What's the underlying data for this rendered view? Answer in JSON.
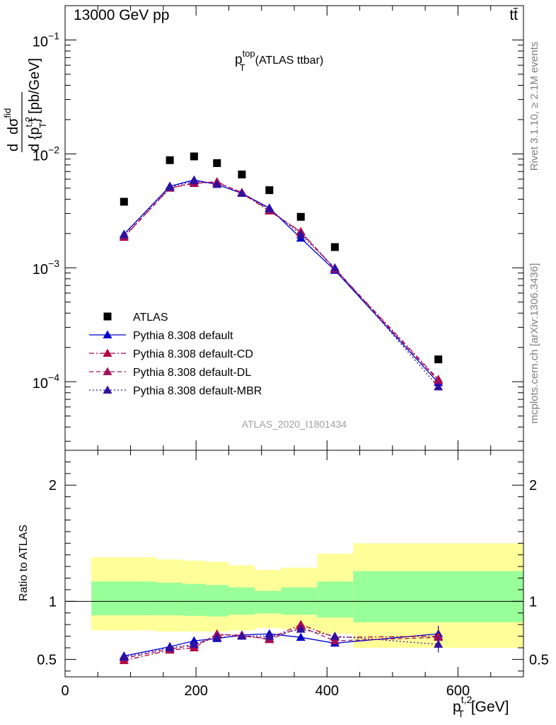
{
  "header": {
    "energy_label": "13000 GeV pp",
    "process_label": "tt̄"
  },
  "side_labels": {
    "rivet": "Rivet 3.1.10, ≥ 2.1M events",
    "mcplots": "mcplots.cern.ch [arXiv:1306.3436]"
  },
  "analysis_id": "ATLAS_2020_I1801434",
  "chart_data": [
    {
      "type": "scatter",
      "panel": "main",
      "title_main": "p",
      "title_sup": "top",
      "title_sub": "T",
      "title_suffix": "(ATLAS ttbar)",
      "ylabel": "d dσ^fid / d {p_T^t,2} [pb/GeV]",
      "ylabel_parts": {
        "d": "d",
        "dsigma": "dσ",
        "sigma_sup": "fid",
        "den": "d {p",
        "den_sup": "t,2",
        "den_sub": "T",
        "den_tail": "} [pb/GeV]"
      },
      "yscale": "log",
      "ylim": [
        2.5e-05,
        0.2
      ],
      "xlim": [
        0,
        700
      ],
      "ytick_labels": [
        {
          "mant": "10",
          "exp": "−1",
          "value": 0.1
        },
        {
          "mant": "10",
          "exp": "−2",
          "value": 0.01
        },
        {
          "mant": "10",
          "exp": "−3",
          "value": 0.001
        },
        {
          "mant": "10",
          "exp": "−4",
          "value": 0.0001
        }
      ],
      "x": [
        90,
        160,
        197,
        232,
        270,
        312,
        360,
        412,
        570
      ],
      "series": [
        {
          "name": "ATLAS",
          "color": "#000000",
          "marker": "square",
          "line": "none",
          "values": [
            0.0038,
            0.0088,
            0.0095,
            0.0083,
            0.0066,
            0.0048,
            0.0028,
            0.00152,
            0.000157
          ]
        },
        {
          "name": "Pythia 8.308 default",
          "color": "#0000cc",
          "marker": "triangle",
          "line": "solid",
          "values": [
            0.00197,
            0.0052,
            0.0059,
            0.0054,
            0.0045,
            0.00335,
            0.00182,
            0.00095,
            9.8e-05
          ]
        },
        {
          "name": "Pythia 8.308 default-CD",
          "color": "#b0003c",
          "marker": "triangle",
          "line": "dashdot",
          "values": [
            0.00185,
            0.005,
            0.0055,
            0.0057,
            0.0045,
            0.00315,
            0.00208,
            0.00098,
            0.000105
          ]
        },
        {
          "name": "Pythia 8.308 default-DL",
          "color": "#a0105c",
          "marker": "triangle",
          "line": "dashed",
          "values": [
            0.00188,
            0.005,
            0.0056,
            0.0056,
            0.0046,
            0.0032,
            0.00205,
            0.00097,
            0.000102
          ]
        },
        {
          "name": "Pythia 8.308 default-MBR",
          "color": "#3010a0",
          "marker": "triangle",
          "line": "dotted",
          "values": [
            0.00195,
            0.0051,
            0.0058,
            0.0054,
            0.0045,
            0.0033,
            0.00195,
            0.001,
            9e-05
          ]
        }
      ]
    },
    {
      "type": "scatter",
      "panel": "ratio",
      "ylabel": "Ratio to ATLAS",
      "xlabel_main": "p",
      "xlabel_sup": "t,2",
      "xlabel_sub": "T",
      "xlabel_unit": "[GeV]",
      "ylim": [
        0.35,
        2.3
      ],
      "xlim": [
        0,
        700
      ],
      "xtick_labels": [
        "0",
        "200",
        "400",
        "600"
      ],
      "xtick_values": [
        0,
        200,
        400,
        600
      ],
      "ytick_labels_left": [
        "2",
        "1",
        "0.5"
      ],
      "ytick_labels_right": [
        "2",
        "1",
        "0.5"
      ],
      "ytick_values": [
        2,
        1,
        0.5
      ],
      "bands": [
        {
          "x0": 40,
          "x1": 140,
          "inner": [
            0.88,
            1.17
          ],
          "outer": [
            0.75,
            1.38
          ]
        },
        {
          "x0": 140,
          "x1": 180,
          "inner": [
            0.88,
            1.16
          ],
          "outer": [
            0.74,
            1.36
          ]
        },
        {
          "x0": 180,
          "x1": 215,
          "inner": [
            0.875,
            1.15
          ],
          "outer": [
            0.74,
            1.35
          ]
        },
        {
          "x0": 215,
          "x1": 250,
          "inner": [
            0.87,
            1.14
          ],
          "outer": [
            0.74,
            1.34
          ]
        },
        {
          "x0": 250,
          "x1": 290,
          "inner": [
            0.885,
            1.12
          ],
          "outer": [
            0.75,
            1.31
          ]
        },
        {
          "x0": 290,
          "x1": 330,
          "inner": [
            0.895,
            1.09
          ],
          "outer": [
            0.77,
            1.27
          ]
        },
        {
          "x0": 330,
          "x1": 385,
          "inner": [
            0.885,
            1.12
          ],
          "outer": [
            0.76,
            1.29
          ]
        },
        {
          "x0": 385,
          "x1": 440,
          "inner": [
            0.86,
            1.17
          ],
          "outer": [
            0.72,
            1.41
          ]
        },
        {
          "x0": 440,
          "x1": 700,
          "inner": [
            0.82,
            1.26
          ],
          "outer": [
            0.6,
            1.5
          ]
        }
      ],
      "band_colors": {
        "inner": "#99ff99",
        "outer": "#ffff99"
      },
      "x": [
        90,
        160,
        197,
        232,
        270,
        312,
        360,
        412,
        570
      ],
      "series": [
        {
          "name": "Pythia 8.308 default",
          "color": "#0000cc",
          "line": "solid",
          "values": [
            0.53,
            0.61,
            0.66,
            0.68,
            0.71,
            0.72,
            0.69,
            0.64,
            0.72
          ]
        },
        {
          "name": "Pythia 8.308 default-CD",
          "color": "#b0003c",
          "line": "dashdot",
          "values": [
            0.49,
            0.58,
            0.6,
            0.72,
            0.7,
            0.68,
            0.8,
            0.69,
            0.7
          ]
        },
        {
          "name": "Pythia 8.308 default-DL",
          "color": "#a0105c",
          "line": "dashed",
          "values": [
            0.51,
            0.59,
            0.62,
            0.71,
            0.71,
            0.67,
            0.78,
            0.66,
            0.69
          ]
        },
        {
          "name": "Pythia 8.308 default-MBR",
          "color": "#3010a0",
          "line": "dotted",
          "values": [
            0.52,
            0.6,
            0.63,
            0.69,
            0.7,
            0.7,
            0.76,
            0.7,
            0.63
          ]
        }
      ]
    }
  ]
}
